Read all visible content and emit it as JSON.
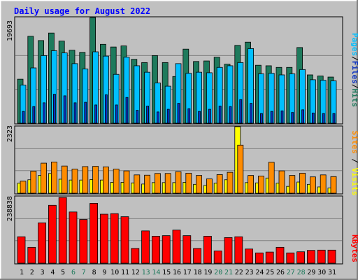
{
  "chart_data": [
    {
      "type": "bar",
      "title": "Daily usage for August 2022",
      "categories": [
        "1",
        "2",
        "3",
        "4",
        "5",
        "6",
        "7",
        "8",
        "9",
        "10",
        "11",
        "12",
        "13",
        "14",
        "15",
        "16",
        "17",
        "18",
        "19",
        "20",
        "21",
        "22",
        "23",
        "24",
        "25",
        "26",
        "27",
        "28",
        "29",
        "30",
        "31"
      ],
      "weekend_days": [
        "6",
        "7",
        "13",
        "14",
        "20",
        "21",
        "27",
        "28"
      ],
      "ymax_label": "19693",
      "ylim": [
        0,
        19693
      ],
      "legend": [
        "Pages",
        "Files",
        "Hits"
      ],
      "series": [
        {
          "name": "Hits",
          "color": "#1e7a5c",
          "values": [
            8200,
            16200,
            15400,
            16800,
            15300,
            13600,
            13200,
            19693,
            14700,
            14200,
            14400,
            11900,
            11300,
            12600,
            11300,
            8700,
            13800,
            11500,
            11600,
            12300,
            11000,
            14500,
            15100,
            10800,
            10700,
            10400,
            10400,
            14100,
            9000,
            8800,
            8600
          ]
        },
        {
          "name": "Files",
          "color": "#00bfff",
          "values": [
            7100,
            10300,
            12600,
            13500,
            13100,
            11100,
            10100,
            13300,
            12500,
            9100,
            12300,
            10700,
            9500,
            7500,
            6900,
            11100,
            9300,
            9500,
            9400,
            10400,
            10700,
            11300,
            13900,
            9200,
            9300,
            9000,
            9200,
            10000,
            8100,
            8000,
            7900
          ]
        },
        {
          "name": "Pages",
          "color": "#0b32c2",
          "values": [
            2200,
            3100,
            3800,
            5400,
            5100,
            3800,
            3900,
            3400,
            5300,
            3400,
            4800,
            2400,
            3200,
            2100,
            2600,
            3700,
            2700,
            2200,
            2600,
            3200,
            3100,
            4400,
            3700,
            1800,
            2200,
            2300,
            2000,
            2500,
            1900,
            1800,
            1800
          ]
        }
      ]
    },
    {
      "type": "bar",
      "ymax_label": "2323",
      "ylim": [
        0,
        2323
      ],
      "legend": [
        "Sites",
        "Visits"
      ],
      "series": [
        {
          "name": "Visits",
          "color": "#ffff00",
          "values": [
            350,
            470,
            620,
            690,
            490,
            460,
            460,
            480,
            460,
            380,
            380,
            360,
            320,
            370,
            370,
            370,
            380,
            310,
            270,
            350,
            470,
            2323,
            370,
            360,
            530,
            350,
            240,
            390,
            310,
            220,
            180
          ]
        },
        {
          "name": "Sites",
          "color": "#ff8c00",
          "values": [
            420,
            770,
            1050,
            1090,
            950,
            840,
            930,
            940,
            920,
            840,
            780,
            640,
            630,
            690,
            690,
            750,
            700,
            620,
            500,
            650,
            730,
            1680,
            620,
            600,
            1080,
            780,
            620,
            700,
            570,
            640,
            580
          ]
        }
      ]
    },
    {
      "type": "bar",
      "ymax_label": "238838",
      "ylim": [
        0,
        238838
      ],
      "legend": [
        "KBytes"
      ],
      "series": [
        {
          "name": "KBytes",
          "color": "#ff0000",
          "values": [
            95000,
            57000,
            145000,
            208000,
            236000,
            184000,
            157000,
            215000,
            176000,
            178000,
            167000,
            53000,
            116000,
            97000,
            99000,
            119000,
            99000,
            53000,
            97000,
            44000,
            92000,
            95000,
            51000,
            37000,
            40000,
            57000,
            37000,
            41000,
            46000,
            47000,
            47000
          ]
        }
      ]
    }
  ]
}
